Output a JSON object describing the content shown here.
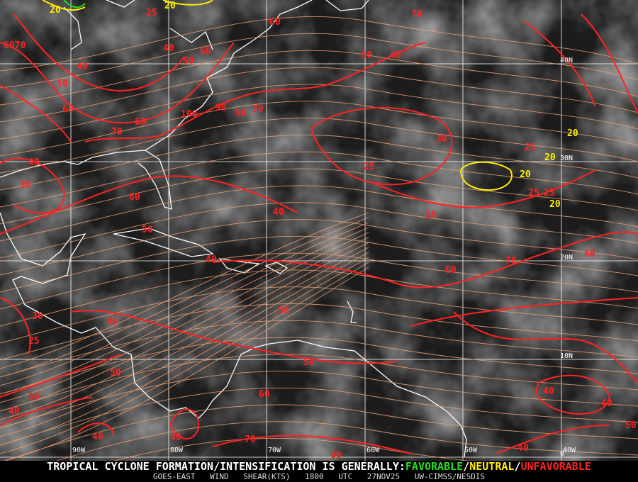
{
  "map": {
    "grid_longitudes": [
      "90W",
      "80W",
      "70W",
      "60W",
      "50W",
      "40W"
    ],
    "grid_latitudes": [
      "40N",
      "30N",
      "20N",
      "10N",
      "0"
    ],
    "contour_labels": [
      {
        "v": "20",
        "c": "yellow"
      },
      {
        "v": "25",
        "c": "red"
      },
      {
        "v": "20",
        "c": "yellow"
      },
      {
        "v": "70",
        "c": "red"
      },
      {
        "v": "6070",
        "c": "red"
      },
      {
        "v": "40",
        "c": "red"
      },
      {
        "v": "50",
        "c": "red"
      },
      {
        "v": "60",
        "c": "red"
      },
      {
        "v": "40",
        "c": "red"
      },
      {
        "v": "50",
        "c": "red"
      },
      {
        "v": "60",
        "c": "red"
      },
      {
        "v": "60",
        "c": "red"
      },
      {
        "v": "50",
        "c": "red"
      },
      {
        "v": "40",
        "c": "red"
      },
      {
        "v": "100",
        "c": "red"
      },
      {
        "v": "90",
        "c": "red"
      },
      {
        "v": "80",
        "c": "red"
      },
      {
        "v": "70",
        "c": "red"
      },
      {
        "v": "60",
        "c": "red"
      },
      {
        "v": "70",
        "c": "red"
      },
      {
        "v": "40",
        "c": "red"
      },
      {
        "v": "30",
        "c": "red"
      },
      {
        "v": "60",
        "c": "red"
      },
      {
        "v": "50",
        "c": "red"
      },
      {
        "v": "40",
        "c": "red"
      },
      {
        "v": "30",
        "c": "red"
      },
      {
        "v": "25",
        "c": "red"
      },
      {
        "v": "25",
        "c": "red"
      },
      {
        "v": "25",
        "c": "red"
      },
      {
        "v": "20",
        "c": "yellow"
      },
      {
        "v": "20",
        "c": "yellow"
      },
      {
        "v": "20",
        "c": "yellow"
      },
      {
        "v": "25",
        "c": "red"
      },
      {
        "v": "20",
        "c": "yellow"
      },
      {
        "v": "40",
        "c": "red"
      },
      {
        "v": "25",
        "c": "red"
      },
      {
        "v": "40",
        "c": "red"
      },
      {
        "v": "60",
        "c": "red"
      },
      {
        "v": "70",
        "c": "red"
      },
      {
        "v": "60",
        "c": "red"
      },
      {
        "v": "50",
        "c": "red"
      },
      {
        "v": "30",
        "c": "red"
      },
      {
        "v": "25",
        "c": "red"
      },
      {
        "v": "40",
        "c": "red"
      },
      {
        "v": "50",
        "c": "red"
      },
      {
        "v": "50",
        "c": "red"
      },
      {
        "v": "50",
        "c": "red"
      },
      {
        "v": "60",
        "c": "red"
      },
      {
        "v": "40",
        "c": "red"
      },
      {
        "v": "40",
        "c": "red"
      },
      {
        "v": "40",
        "c": "red"
      },
      {
        "v": "70",
        "c": "red"
      },
      {
        "v": "60",
        "c": "red"
      },
      {
        "v": "40",
        "c": "red"
      },
      {
        "v": "40",
        "c": "red"
      },
      {
        "v": "50",
        "c": "red"
      }
    ],
    "colors": {
      "favorable": "#22dd22",
      "neutral": "#ffee00",
      "unfavorable": "#ff2222",
      "streamline": "#f0a070",
      "coast": "#ffffff"
    }
  },
  "footer": {
    "headline": "TROPICAL CYCLONE FORMATION/INTENSIFICATION IS GENERALLY:",
    "favorable": "FAVORABLE",
    "sep1": "/",
    "neutral": "NEUTRAL",
    "sep2": "/",
    "unfavorable": "UNFAVORABLE",
    "product": "GOES-EAST WIND SHEAR(KTS)",
    "time": "1800 UTC",
    "date": "27NOV25",
    "source": "UW-CIMSS/NESDIS"
  }
}
